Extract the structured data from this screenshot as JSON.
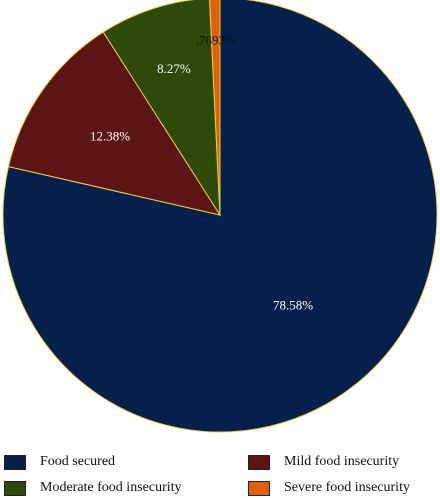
{
  "chart_data": {
    "type": "pie",
    "slices": [
      {
        "name": "Food secured",
        "value": 78.58,
        "label": "78.58%",
        "color": "#061F4C",
        "label_color": "#ffffff"
      },
      {
        "name": "Mild food insecurity",
        "value": 12.38,
        "label": "12.38%",
        "color": "#5C1414",
        "label_color": "#ffffff"
      },
      {
        "name": "Moderate food insecurity",
        "value": 8.27,
        "label": "8.27%",
        "color": "#2D4A0B",
        "label_color": "#ffffff"
      },
      {
        "name": "Severe food insecurity",
        "value": 0.7693,
        "label": ".7693%",
        "color": "#E0600A",
        "label_color": "#111111"
      }
    ],
    "border_color": "#E7D23A",
    "start_angle": "12 o'clock",
    "direction": "clockwise",
    "legend": [
      "Food secured",
      "Mild food insecurity",
      "Moderate food insecurity",
      "Severe food insecurity"
    ],
    "legend_position": "bottom"
  }
}
